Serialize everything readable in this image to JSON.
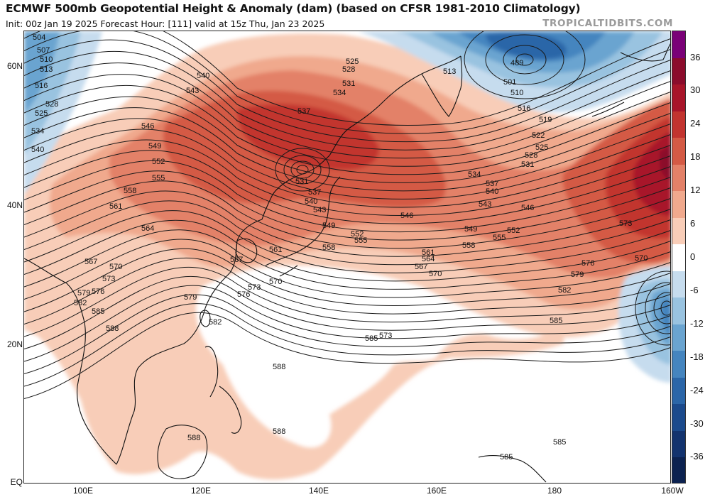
{
  "header": {
    "title": "ECMWF 500mb Geopotential Height & Anomaly (dam) (based on CFSR 1981-2010 Climatology)",
    "subtitle": "Init: 00z Jan 19 2025   Forecast Hour: [111]   valid at 15z Thu, Jan 23 2025",
    "brand": "TROPICALTIDBITS.COM"
  },
  "axes": {
    "lat_labels": [
      "60N",
      "40N",
      "20N",
      "EQ"
    ],
    "lon_labels": [
      "100E",
      "120E",
      "140E",
      "160E",
      "180",
      "160W"
    ]
  },
  "colorbar": {
    "labels": [
      "36",
      "30",
      "24",
      "18",
      "12",
      "6",
      "0",
      "-6",
      "-12",
      "-18",
      "-24",
      "-30",
      "-36"
    ],
    "colors": [
      "#7a0177",
      "#8b0c2c",
      "#a8152a",
      "#c2342f",
      "#d45a45",
      "#e38168",
      "#f0a98d",
      "#f8cdb8",
      "#ffffff",
      "#c6dcee",
      "#99c3e0",
      "#6aa4d0",
      "#4585bf",
      "#2b66a8",
      "#1b4a8c",
      "#13336e",
      "#0c2250"
    ]
  },
  "map": {
    "contour_values": [
      "489",
      "501",
      "504",
      "507",
      "510",
      "513",
      "516",
      "519",
      "522",
      "525",
      "528",
      "531",
      "534",
      "537",
      "540",
      "543",
      "546",
      "549",
      "552",
      "555",
      "558",
      "561",
      "564",
      "567",
      "570",
      "573",
      "576",
      "579",
      "582",
      "585",
      "588"
    ],
    "contour_labels": [
      {
        "t": "504"
      },
      {
        "t": "507"
      },
      {
        "t": "510"
      },
      {
        "t": "513"
      },
      {
        "t": "516"
      },
      {
        "t": "525"
      },
      {
        "t": "528"
      },
      {
        "t": "534"
      },
      {
        "t": "540"
      },
      {
        "t": "546"
      },
      {
        "t": "549"
      },
      {
        "t": "552"
      },
      {
        "t": "555"
      },
      {
        "t": "558"
      },
      {
        "t": "561"
      },
      {
        "t": "564"
      },
      {
        "t": "567"
      },
      {
        "t": "570"
      },
      {
        "t": "573"
      },
      {
        "t": "576"
      },
      {
        "t": "579"
      },
      {
        "t": "582"
      },
      {
        "t": "585"
      },
      {
        "t": "588"
      },
      {
        "t": "540"
      },
      {
        "t": "543"
      },
      {
        "t": "525"
      },
      {
        "t": "528"
      },
      {
        "t": "531"
      },
      {
        "t": "534"
      },
      {
        "t": "537"
      },
      {
        "t": "531"
      },
      {
        "t": "537"
      },
      {
        "t": "540"
      },
      {
        "t": "543"
      },
      {
        "t": "546"
      },
      {
        "t": "549"
      },
      {
        "t": "552"
      },
      {
        "t": "555"
      },
      {
        "t": "558"
      },
      {
        "t": "561"
      },
      {
        "t": "567"
      },
      {
        "t": "570"
      },
      {
        "t": "573"
      },
      {
        "t": "576"
      },
      {
        "t": "579"
      },
      {
        "t": "582"
      },
      {
        "t": "585"
      },
      {
        "t": "588"
      },
      {
        "t": "588"
      },
      {
        "t": "588"
      },
      {
        "t": "513"
      },
      {
        "t": "489"
      },
      {
        "t": "501"
      },
      {
        "t": "510"
      },
      {
        "t": "516"
      },
      {
        "t": "519"
      },
      {
        "t": "522"
      },
      {
        "t": "525"
      },
      {
        "t": "528"
      },
      {
        "t": "531"
      },
      {
        "t": "534"
      },
      {
        "t": "537"
      },
      {
        "t": "540"
      },
      {
        "t": "543"
      },
      {
        "t": "546"
      },
      {
        "t": "549"
      },
      {
        "t": "552"
      },
      {
        "t": "555"
      },
      {
        "t": "558"
      },
      {
        "t": "561"
      },
      {
        "t": "564"
      },
      {
        "t": "567"
      },
      {
        "t": "570"
      },
      {
        "t": "573"
      },
      {
        "t": "576"
      },
      {
        "t": "579"
      },
      {
        "t": "582"
      },
      {
        "t": "585"
      },
      {
        "t": "570"
      },
      {
        "t": "573"
      },
      {
        "t": "585"
      },
      {
        "t": "585"
      },
      {
        "t": "585"
      }
    ]
  }
}
